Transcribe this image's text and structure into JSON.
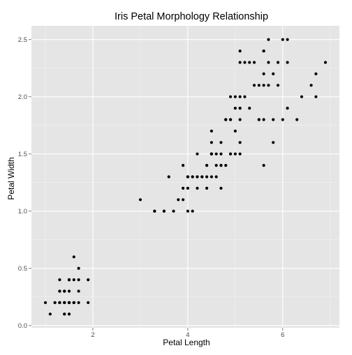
{
  "chart_data": {
    "type": "scatter",
    "title": "Iris Petal Morphology Relationship",
    "xlabel": "Petal Length",
    "ylabel": "Petal Width",
    "xlim": [
      0.705,
      7.195
    ],
    "ylim": [
      -0.02,
      2.62
    ],
    "x_ticks": [
      2,
      4,
      6
    ],
    "x_tick_labels": [
      "2",
      "4",
      "6"
    ],
    "y_ticks": [
      0.0,
      0.5,
      1.0,
      1.5,
      2.0,
      2.5
    ],
    "y_tick_labels": [
      "0.0",
      "0.5",
      "1.0",
      "1.5",
      "2.0",
      "2.5"
    ],
    "x_minor_ticks": [
      1,
      3,
      5,
      7
    ],
    "y_minor_ticks": [
      0.25,
      0.75,
      1.25,
      1.75,
      2.25
    ],
    "grid": true,
    "colors": {
      "panel": "#e5e5e5",
      "point": "#000000",
      "grid_major": "#ffffff",
      "grid_minor": "#f2f2f2"
    },
    "points": [
      [
        1.4,
        0.2
      ],
      [
        1.4,
        0.2
      ],
      [
        1.3,
        0.2
      ],
      [
        1.5,
        0.2
      ],
      [
        1.4,
        0.2
      ],
      [
        1.7,
        0.4
      ],
      [
        1.4,
        0.3
      ],
      [
        1.5,
        0.2
      ],
      [
        1.4,
        0.2
      ],
      [
        1.5,
        0.1
      ],
      [
        1.5,
        0.2
      ],
      [
        1.6,
        0.2
      ],
      [
        1.4,
        0.1
      ],
      [
        1.1,
        0.1
      ],
      [
        1.2,
        0.2
      ],
      [
        1.5,
        0.4
      ],
      [
        1.3,
        0.4
      ],
      [
        1.4,
        0.3
      ],
      [
        1.7,
        0.3
      ],
      [
        1.5,
        0.3
      ],
      [
        1.7,
        0.2
      ],
      [
        1.5,
        0.4
      ],
      [
        1.0,
        0.2
      ],
      [
        1.7,
        0.5
      ],
      [
        1.9,
        0.2
      ],
      [
        1.6,
        0.2
      ],
      [
        1.6,
        0.4
      ],
      [
        1.5,
        0.2
      ],
      [
        1.4,
        0.2
      ],
      [
        1.6,
        0.2
      ],
      [
        1.6,
        0.2
      ],
      [
        1.5,
        0.4
      ],
      [
        1.5,
        0.1
      ],
      [
        1.4,
        0.2
      ],
      [
        1.5,
        0.2
      ],
      [
        1.2,
        0.2
      ],
      [
        1.3,
        0.2
      ],
      [
        1.4,
        0.1
      ],
      [
        1.3,
        0.2
      ],
      [
        1.5,
        0.2
      ],
      [
        1.3,
        0.3
      ],
      [
        1.3,
        0.3
      ],
      [
        1.3,
        0.2
      ],
      [
        1.6,
        0.6
      ],
      [
        1.9,
        0.4
      ],
      [
        1.4,
        0.3
      ],
      [
        1.6,
        0.2
      ],
      [
        1.4,
        0.2
      ],
      [
        1.5,
        0.2
      ],
      [
        1.4,
        0.2
      ],
      [
        4.7,
        1.4
      ],
      [
        4.5,
        1.5
      ],
      [
        4.9,
        1.5
      ],
      [
        4.0,
        1.3
      ],
      [
        4.6,
        1.5
      ],
      [
        4.5,
        1.3
      ],
      [
        4.7,
        1.6
      ],
      [
        3.3,
        1.0
      ],
      [
        4.6,
        1.3
      ],
      [
        3.9,
        1.4
      ],
      [
        3.5,
        1.0
      ],
      [
        4.2,
        1.5
      ],
      [
        4.0,
        1.0
      ],
      [
        4.7,
        1.4
      ],
      [
        3.6,
        1.3
      ],
      [
        4.4,
        1.4
      ],
      [
        4.5,
        1.5
      ],
      [
        4.1,
        1.0
      ],
      [
        4.5,
        1.5
      ],
      [
        3.9,
        1.1
      ],
      [
        4.8,
        1.8
      ],
      [
        4.0,
        1.3
      ],
      [
        4.9,
        1.5
      ],
      [
        4.7,
        1.2
      ],
      [
        4.3,
        1.3
      ],
      [
        4.4,
        1.4
      ],
      [
        4.8,
        1.4
      ],
      [
        5.0,
        1.7
      ],
      [
        4.5,
        1.5
      ],
      [
        3.5,
        1.0
      ],
      [
        3.8,
        1.1
      ],
      [
        3.7,
        1.0
      ],
      [
        3.9,
        1.2
      ],
      [
        5.1,
        1.6
      ],
      [
        4.5,
        1.5
      ],
      [
        4.5,
        1.6
      ],
      [
        4.7,
        1.5
      ],
      [
        4.4,
        1.3
      ],
      [
        4.1,
        1.3
      ],
      [
        4.0,
        1.3
      ],
      [
        4.4,
        1.2
      ],
      [
        4.6,
        1.4
      ],
      [
        4.0,
        1.2
      ],
      [
        3.3,
        1.0
      ],
      [
        4.2,
        1.3
      ],
      [
        4.2,
        1.2
      ],
      [
        4.2,
        1.3
      ],
      [
        4.3,
        1.3
      ],
      [
        3.0,
        1.1
      ],
      [
        4.1,
        1.3
      ],
      [
        6.0,
        2.5
      ],
      [
        5.1,
        1.9
      ],
      [
        5.9,
        2.1
      ],
      [
        5.6,
        1.8
      ],
      [
        5.8,
        2.2
      ],
      [
        6.6,
        2.1
      ],
      [
        4.5,
        1.7
      ],
      [
        6.3,
        1.8
      ],
      [
        5.8,
        1.8
      ],
      [
        6.1,
        2.5
      ],
      [
        5.1,
        2.0
      ],
      [
        5.3,
        1.9
      ],
      [
        5.5,
        2.1
      ],
      [
        5.0,
        2.0
      ],
      [
        5.1,
        2.4
      ],
      [
        5.3,
        2.3
      ],
      [
        5.5,
        1.8
      ],
      [
        6.7,
        2.2
      ],
      [
        6.9,
        2.3
      ],
      [
        5.0,
        1.5
      ],
      [
        5.7,
        2.3
      ],
      [
        4.9,
        2.0
      ],
      [
        6.7,
        2.0
      ],
      [
        4.9,
        1.8
      ],
      [
        5.7,
        2.1
      ],
      [
        6.0,
        1.8
      ],
      [
        4.8,
        1.8
      ],
      [
        4.9,
        1.8
      ],
      [
        5.6,
        2.1
      ],
      [
        5.8,
        1.6
      ],
      [
        6.1,
        1.9
      ],
      [
        6.4,
        2.0
      ],
      [
        5.6,
        2.2
      ],
      [
        5.1,
        1.5
      ],
      [
        5.6,
        1.4
      ],
      [
        6.1,
        2.3
      ],
      [
        5.6,
        2.4
      ],
      [
        5.5,
        1.8
      ],
      [
        4.8,
        1.8
      ],
      [
        5.4,
        2.1
      ],
      [
        5.6,
        2.4
      ],
      [
        5.1,
        2.3
      ],
      [
        5.1,
        1.9
      ],
      [
        5.9,
        2.3
      ],
      [
        5.7,
        2.5
      ],
      [
        5.2,
        2.3
      ],
      [
        5.0,
        1.9
      ],
      [
        5.2,
        2.0
      ],
      [
        5.4,
        2.3
      ],
      [
        5.1,
        1.8
      ]
    ]
  }
}
